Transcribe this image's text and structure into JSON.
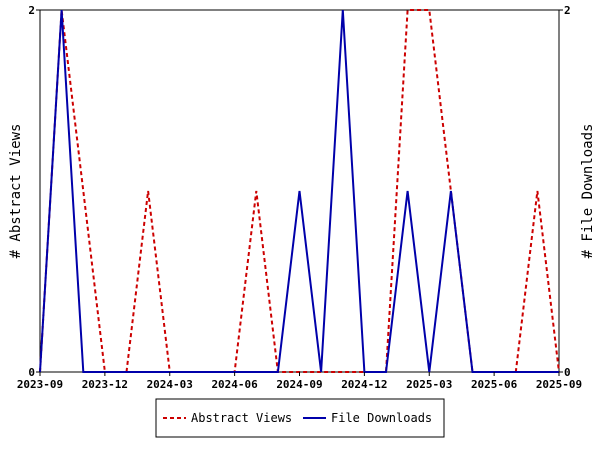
{
  "chart_data": {
    "type": "line",
    "y_left_label": "# Abstract Views",
    "y_right_label": "# File Downloads",
    "y_left_ticks": [
      "0",
      "2"
    ],
    "y_right_ticks": [
      "0",
      "2"
    ],
    "ylim": [
      0,
      2
    ],
    "x_tick_labels": [
      "2023-09",
      "2023-12",
      "2024-03",
      "2024-06",
      "2024-09",
      "2024-12",
      "2025-03",
      "2025-06",
      "2025-09"
    ],
    "x": [
      "2023-09",
      "2023-10",
      "2023-11",
      "2023-12",
      "2024-01",
      "2024-02",
      "2024-03",
      "2024-04",
      "2024-05",
      "2024-06",
      "2024-07",
      "2024-08",
      "2024-09",
      "2024-10",
      "2024-11",
      "2024-12",
      "2025-01",
      "2025-02",
      "2025-03",
      "2025-04",
      "2025-05",
      "2025-06",
      "2025-07",
      "2025-08",
      "2025-09"
    ],
    "series": [
      {
        "name": "Abstract Views",
        "color": "#cc0000",
        "style": "dashed",
        "axis": "left",
        "values": [
          0,
          2,
          1,
          0,
          0,
          1,
          0,
          0,
          0,
          0,
          1,
          0,
          0,
          0,
          0,
          0,
          0,
          2,
          2,
          1,
          0,
          0,
          0,
          1,
          0
        ]
      },
      {
        "name": "File Downloads",
        "color": "#0000aa",
        "style": "solid",
        "axis": "right",
        "values": [
          0,
          2,
          0,
          0,
          0,
          0,
          0,
          0,
          0,
          0,
          0,
          0,
          1,
          0,
          2,
          0,
          0,
          1,
          0,
          1,
          0,
          0,
          0,
          0,
          0
        ]
      }
    ],
    "legend": [
      "Abstract Views",
      "File Downloads"
    ],
    "legend_position": "bottom",
    "grid": false
  }
}
